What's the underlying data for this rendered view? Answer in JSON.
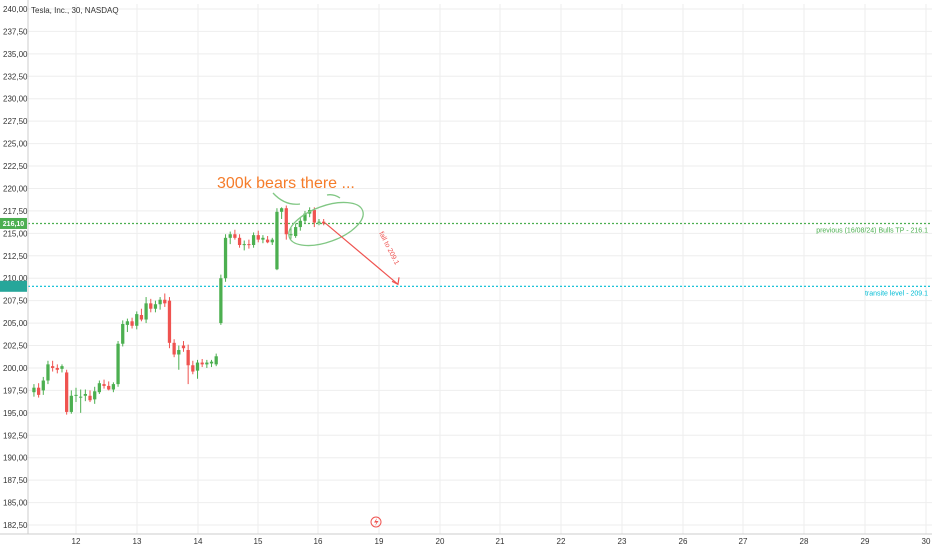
{
  "chart_data": {
    "type": "candlestick",
    "title": "Tesla, Inc., 30, NASDAQ",
    "ylim": [
      182.5,
      240.0
    ],
    "y_ticks": [
      240.0,
      237.5,
      235.0,
      232.5,
      230.0,
      227.5,
      225.0,
      222.5,
      220.0,
      217.5,
      215.0,
      212.5,
      210.0,
      207.5,
      205.0,
      202.5,
      200.0,
      197.5,
      195.0,
      192.5,
      190.0,
      187.5,
      185.0,
      182.5
    ],
    "y_tick_labels": [
      "240,00",
      "237,50",
      "235,00",
      "232,50",
      "230,00",
      "227,50",
      "225,00",
      "222,50",
      "220,00",
      "217,50",
      "215,00",
      "212,50",
      "210,00",
      "207,50",
      "205,00",
      "202,50",
      "200,00",
      "197,50",
      "195,00",
      "192,50",
      "190,00",
      "187,50",
      "185,00",
      "182,50"
    ],
    "x_day_labels": [
      "12",
      "13",
      "14",
      "15",
      "16",
      "19",
      "20",
      "21",
      "22",
      "23",
      "26",
      "27",
      "28",
      "29",
      "30"
    ],
    "bars_per_day": 13,
    "grid": true,
    "colors": {
      "up": "#4caf50",
      "down": "#ef5350",
      "green_line": "#4caf50",
      "cyan_line": "#00bcd4",
      "annotation_orange": "#f57c2a",
      "annotation_green": "#81c784",
      "arrow_red": "#ef5350",
      "grid": "#eeeeee"
    },
    "candles": [
      {
        "o": 197.3,
        "h": 198.2,
        "l": 196.8,
        "c": 197.8
      },
      {
        "o": 197.8,
        "h": 198.3,
        "l": 196.7,
        "c": 197.0
      },
      {
        "o": 197.5,
        "h": 199.0,
        "l": 197.0,
        "c": 198.6
      },
      {
        "o": 198.6,
        "h": 200.8,
        "l": 198.2,
        "c": 200.4
      },
      {
        "o": 200.2,
        "h": 200.8,
        "l": 199.6,
        "c": 200.0
      },
      {
        "o": 200.0,
        "h": 200.4,
        "l": 199.4,
        "c": 199.8
      },
      {
        "o": 199.9,
        "h": 200.4,
        "l": 199.5,
        "c": 200.2
      },
      {
        "o": 199.5,
        "h": 199.8,
        "l": 194.8,
        "c": 195.1
      },
      {
        "o": 195.1,
        "h": 197.5,
        "l": 194.9,
        "c": 196.9
      },
      {
        "o": 196.9,
        "h": 197.8,
        "l": 196.2,
        "c": 197.0
      },
      {
        "o": 196.8,
        "h": 197.6,
        "l": 195.0,
        "c": 196.8
      },
      {
        "o": 196.9,
        "h": 197.6,
        "l": 196.3,
        "c": 197.1
      },
      {
        "o": 196.9,
        "h": 197.5,
        "l": 196.2,
        "c": 196.4
      },
      {
        "o": 196.5,
        "h": 197.9,
        "l": 196.0,
        "c": 197.4
      },
      {
        "o": 197.3,
        "h": 198.6,
        "l": 197.1,
        "c": 198.3
      },
      {
        "o": 198.2,
        "h": 198.7,
        "l": 197.7,
        "c": 198.0
      },
      {
        "o": 198.0,
        "h": 198.5,
        "l": 197.5,
        "c": 197.6
      },
      {
        "o": 197.6,
        "h": 198.4,
        "l": 197.3,
        "c": 198.2
      },
      {
        "o": 198.2,
        "h": 203.0,
        "l": 197.9,
        "c": 202.7
      },
      {
        "o": 202.7,
        "h": 205.3,
        "l": 202.4,
        "c": 204.9
      },
      {
        "o": 204.8,
        "h": 205.5,
        "l": 204.0,
        "c": 205.2
      },
      {
        "o": 205.2,
        "h": 205.6,
        "l": 204.4,
        "c": 204.7
      },
      {
        "o": 204.7,
        "h": 206.3,
        "l": 204.3,
        "c": 206.0
      },
      {
        "o": 205.9,
        "h": 206.6,
        "l": 205.2,
        "c": 205.4
      },
      {
        "o": 205.4,
        "h": 207.9,
        "l": 205.0,
        "c": 207.2
      },
      {
        "o": 207.2,
        "h": 207.7,
        "l": 206.2,
        "c": 206.6
      },
      {
        "o": 206.6,
        "h": 207.5,
        "l": 206.2,
        "c": 207.1
      },
      {
        "o": 207.1,
        "h": 207.9,
        "l": 206.5,
        "c": 207.6
      },
      {
        "o": 207.6,
        "h": 208.3,
        "l": 206.8,
        "c": 207.2
      },
      {
        "o": 207.5,
        "h": 207.9,
        "l": 202.2,
        "c": 202.8
      },
      {
        "o": 202.8,
        "h": 203.2,
        "l": 201.2,
        "c": 201.5
      },
      {
        "o": 201.5,
        "h": 202.5,
        "l": 199.8,
        "c": 202.0
      },
      {
        "o": 202.5,
        "h": 203.0,
        "l": 201.8,
        "c": 202.2
      },
      {
        "o": 202.0,
        "h": 202.6,
        "l": 198.2,
        "c": 200.3
      },
      {
        "o": 200.3,
        "h": 200.8,
        "l": 199.3,
        "c": 199.6
      },
      {
        "o": 199.7,
        "h": 200.9,
        "l": 198.8,
        "c": 200.6
      },
      {
        "o": 200.6,
        "h": 201.0,
        "l": 200.1,
        "c": 200.4
      },
      {
        "o": 200.4,
        "h": 200.9,
        "l": 200.0,
        "c": 200.6
      },
      {
        "o": 200.5,
        "h": 200.9,
        "l": 200.1,
        "c": 200.7
      },
      {
        "o": 200.4,
        "h": 201.6,
        "l": 200.2,
        "c": 201.3
      },
      {
        "o": 205.0,
        "h": 210.4,
        "l": 204.8,
        "c": 210.0
      },
      {
        "o": 210.0,
        "h": 214.9,
        "l": 209.6,
        "c": 214.5
      },
      {
        "o": 214.5,
        "h": 215.2,
        "l": 213.8,
        "c": 214.9
      },
      {
        "o": 214.9,
        "h": 215.4,
        "l": 214.3,
        "c": 214.5
      },
      {
        "o": 214.5,
        "h": 214.9,
        "l": 213.4,
        "c": 213.7
      },
      {
        "o": 213.7,
        "h": 214.2,
        "l": 213.1,
        "c": 213.8
      },
      {
        "o": 213.8,
        "h": 214.3,
        "l": 213.3,
        "c": 213.7
      },
      {
        "o": 213.7,
        "h": 215.1,
        "l": 213.4,
        "c": 214.8
      },
      {
        "o": 214.8,
        "h": 215.3,
        "l": 214.0,
        "c": 214.3
      },
      {
        "o": 214.3,
        "h": 214.8,
        "l": 213.9,
        "c": 214.5
      },
      {
        "o": 214.3,
        "h": 214.7,
        "l": 213.9,
        "c": 214.0
      },
      {
        "o": 214.0,
        "h": 214.5,
        "l": 213.7,
        "c": 214.3
      },
      {
        "o": 211.0,
        "h": 217.8,
        "l": 210.9,
        "c": 217.4
      },
      {
        "o": 217.4,
        "h": 217.9,
        "l": 216.6,
        "c": 217.8
      },
      {
        "o": 217.8,
        "h": 218.1,
        "l": 214.3,
        "c": 214.9
      },
      {
        "o": 214.9,
        "h": 215.6,
        "l": 214.4,
        "c": 214.9
      },
      {
        "o": 214.7,
        "h": 216.1,
        "l": 214.5,
        "c": 215.7
      },
      {
        "o": 215.7,
        "h": 216.7,
        "l": 215.3,
        "c": 216.4
      },
      {
        "o": 216.4,
        "h": 217.5,
        "l": 216.1,
        "c": 217.2
      },
      {
        "o": 217.2,
        "h": 217.9,
        "l": 216.8,
        "c": 217.6
      },
      {
        "o": 217.6,
        "h": 217.9,
        "l": 215.7,
        "c": 216.2
      },
      {
        "o": 216.2,
        "h": 216.6,
        "l": 215.9,
        "c": 216.3
      },
      {
        "o": 216.3,
        "h": 216.6,
        "l": 215.9,
        "c": 216.1
      }
    ],
    "horizontal_lines": [
      {
        "name": "green-level-line",
        "value": 216.1,
        "color": "#4caf50",
        "label": "previous (16/08/24) Bulls TP - 216.1"
      },
      {
        "name": "cyan-level-line",
        "value": 209.1,
        "color": "#00bcd4",
        "label": "transite level - 209.1"
      }
    ],
    "price_tags": [
      {
        "name": "price-tag-green",
        "value": 216.1,
        "text": "216,10",
        "color": "#4caf50"
      },
      {
        "name": "price-tag-cyan",
        "value": 209.1,
        "text": "",
        "color": "#26a69a"
      }
    ],
    "annotations": {
      "headline": "300k bears there ...",
      "arrow_text": "fall to 209.1"
    }
  }
}
